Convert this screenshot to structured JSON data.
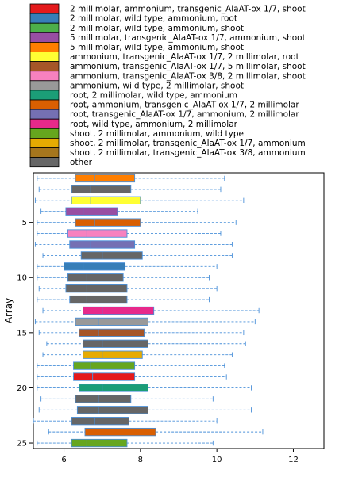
{
  "chart_data": {
    "type": "boxplot",
    "orientation": "horizontal",
    "ylabel": "Array",
    "xlim": [
      5.2,
      12.8
    ],
    "x_ticks": [
      6,
      8,
      10,
      12
    ],
    "y_ticks": [
      5,
      10,
      15,
      20,
      25
    ],
    "y_range": [
      0.5,
      25.5
    ],
    "legend": {
      "placement": "top",
      "entries": [
        {
          "label": "2 millimolar, ammonium, transgenic_AlaAT-ox 1/7, shoot",
          "color": "#e41a1c"
        },
        {
          "label": "2 millimolar, wild type, ammonium, root",
          "color": "#377eb8"
        },
        {
          "label": "2 millimolar, wild type, ammonium, shoot",
          "color": "#4daf4a"
        },
        {
          "label": "5 millimolar, transgenic_AlaAT-ox 1/7, ammonium, shoot",
          "color": "#984ea3"
        },
        {
          "label": "5 millimolar, wild type, ammonium, shoot",
          "color": "#ff7f00"
        },
        {
          "label": "ammonium, transgenic_AlaAT-ox 1/7, 2 millimolar, root",
          "color": "#ffff33"
        },
        {
          "label": "ammonium, transgenic_AlaAT-ox 1/7, 5 millimolar, shoot",
          "color": "#a65628"
        },
        {
          "label": "ammonium, transgenic_AlaAT-ox 3/8, 2 millimolar, shoot",
          "color": "#f781bf"
        },
        {
          "label": "ammonium, wild type, 2 millimolar, shoot",
          "color": "#999999"
        },
        {
          "label": "root, 2 millimolar, wild type, ammonium",
          "color": "#1b9e77"
        },
        {
          "label": "root, ammonium, transgenic_AlaAT-ox 1/7, 2 millimolar",
          "color": "#d95f02"
        },
        {
          "label": "root, transgenic_AlaAT-ox 1/7, ammonium, 2 millimolar",
          "color": "#7570b3"
        },
        {
          "label": "root, wild type, ammonium, 2 millimolar",
          "color": "#e7298a"
        },
        {
          "label": "shoot, 2 millimolar, ammonium, wild type",
          "color": "#66a61e"
        },
        {
          "label": "shoot, 2 millimolar, transgenic_AlaAT-ox 1/7, ammonium",
          "color": "#e6ab02"
        },
        {
          "label": "shoot, 2 millimolar, transgenic_AlaAT-ox 3/8, ammonium",
          "color": "#a6761d"
        },
        {
          "label": "other",
          "color": "#666666"
        }
      ]
    },
    "boxes": [
      {
        "array": 1,
        "legend_index": 4,
        "whisker_low": 5.3,
        "q1": 6.3,
        "median": 6.8,
        "q3": 7.85,
        "whisker_high": 10.2
      },
      {
        "array": 2,
        "legend_index": 16,
        "whisker_low": 5.35,
        "q1": 6.2,
        "median": 6.7,
        "q3": 7.75,
        "whisker_high": 10.1
      },
      {
        "array": 3,
        "legend_index": 5,
        "whisker_low": 5.25,
        "q1": 6.2,
        "median": 6.7,
        "q3": 8.0,
        "whisker_high": 10.7
      },
      {
        "array": 4,
        "legend_index": 3,
        "whisker_low": 5.4,
        "q1": 6.05,
        "median": 6.5,
        "q3": 7.4,
        "whisker_high": 9.5
      },
      {
        "array": 5,
        "legend_index": 10,
        "whisker_low": 5.3,
        "q1": 6.3,
        "median": 6.8,
        "q3": 8.0,
        "whisker_high": 10.5
      },
      {
        "array": 6,
        "legend_index": 7,
        "whisker_low": 5.3,
        "q1": 6.1,
        "median": 6.6,
        "q3": 7.65,
        "whisker_high": 10.1
      },
      {
        "array": 7,
        "legend_index": 11,
        "whisker_low": 5.25,
        "q1": 6.15,
        "median": 6.7,
        "q3": 7.85,
        "whisker_high": 10.4
      },
      {
        "array": 8,
        "legend_index": 16,
        "whisker_low": 5.45,
        "q1": 6.45,
        "median": 7.0,
        "q3": 8.05,
        "whisker_high": 10.4
      },
      {
        "array": 9,
        "legend_index": 1,
        "whisker_low": 5.3,
        "q1": 6.0,
        "median": 6.5,
        "q3": 7.6,
        "whisker_high": 10.0
      },
      {
        "array": 10,
        "legend_index": 16,
        "whisker_low": 5.3,
        "q1": 6.1,
        "median": 6.6,
        "q3": 7.55,
        "whisker_high": 9.8
      },
      {
        "array": 11,
        "legend_index": 16,
        "whisker_low": 5.35,
        "q1": 6.05,
        "median": 6.6,
        "q3": 7.65,
        "whisker_high": 10.0
      },
      {
        "array": 12,
        "legend_index": 16,
        "whisker_low": 5.3,
        "q1": 6.15,
        "median": 6.6,
        "q3": 7.65,
        "whisker_high": 9.8
      },
      {
        "array": 13,
        "legend_index": 12,
        "whisker_low": 5.45,
        "q1": 6.5,
        "median": 7.0,
        "q3": 8.35,
        "whisker_high": 11.1
      },
      {
        "array": 14,
        "legend_index": 8,
        "whisker_low": 5.25,
        "q1": 6.3,
        "median": 6.9,
        "q3": 8.2,
        "whisker_high": 11.0
      },
      {
        "array": 15,
        "legend_index": 6,
        "whisker_low": 5.35,
        "q1": 6.4,
        "median": 6.9,
        "q3": 8.1,
        "whisker_high": 10.7
      },
      {
        "array": 16,
        "legend_index": 16,
        "whisker_low": 5.55,
        "q1": 6.5,
        "median": 7.0,
        "q3": 8.2,
        "whisker_high": 10.75
      },
      {
        "array": 17,
        "legend_index": 14,
        "whisker_low": 5.45,
        "q1": 6.5,
        "median": 7.0,
        "q3": 8.05,
        "whisker_high": 10.4
      },
      {
        "array": 18,
        "legend_index": 13,
        "whisker_low": 5.3,
        "q1": 6.25,
        "median": 6.7,
        "q3": 7.85,
        "whisker_high": 10.2
      },
      {
        "array": 19,
        "legend_index": 0,
        "whisker_low": 5.3,
        "q1": 6.25,
        "median": 6.75,
        "q3": 7.85,
        "whisker_high": 10.25
      },
      {
        "array": 20,
        "legend_index": 9,
        "whisker_low": 5.3,
        "q1": 6.4,
        "median": 7.0,
        "q3": 8.2,
        "whisker_high": 10.9
      },
      {
        "array": 21,
        "legend_index": 16,
        "whisker_low": 5.4,
        "q1": 6.3,
        "median": 6.9,
        "q3": 7.75,
        "whisker_high": 9.9
      },
      {
        "array": 22,
        "legend_index": 16,
        "whisker_low": 5.35,
        "q1": 6.35,
        "median": 6.9,
        "q3": 8.2,
        "whisker_high": 10.9
      },
      {
        "array": 23,
        "legend_index": 16,
        "whisker_low": 5.2,
        "q1": 6.2,
        "median": 6.8,
        "q3": 7.7,
        "whisker_high": 10.0
      },
      {
        "array": 24,
        "legend_index": 10,
        "whisker_low": 5.6,
        "q1": 6.55,
        "median": 7.1,
        "q3": 8.4,
        "whisker_high": 11.2
      },
      {
        "array": 25,
        "legend_index": 13,
        "whisker_low": 5.3,
        "q1": 6.2,
        "median": 6.6,
        "q3": 7.65,
        "whisker_high": 9.9
      }
    ]
  }
}
